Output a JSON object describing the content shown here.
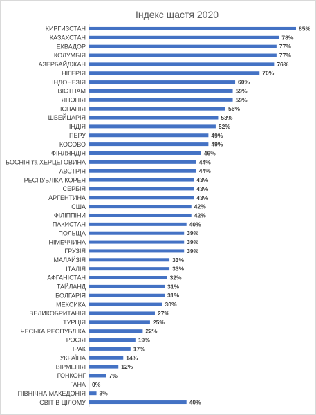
{
  "colors": {
    "bar": "#4472c4",
    "axis": "#d9d9d9",
    "label": "#404040",
    "title": "#595959"
  },
  "chart_data": {
    "type": "bar",
    "orientation": "horizontal",
    "title": "Індекс щастя 2020",
    "xlim": [
      0,
      85
    ],
    "grid": false,
    "categories": [
      "КИРГИЗСТАН",
      "КАЗАХСТАН",
      "ЕКВАДОР",
      "КОЛУМБІЯ",
      "АЗЕРБАЙДЖАН",
      "НІГЕРІЯ",
      "ІНДОНЕЗІЯ",
      "ВІЄТНАМ",
      "ЯПОНІЯ",
      "ІСПАНІЯ",
      "ШВЕЙЦАРІЯ",
      "ІНДІЯ",
      "ПЕРУ",
      "КОСОВО",
      "ФІНЛЯНДІЯ",
      "БОСНІЯ та ХЕРЦЕГОВИНА",
      "АВСТРІЯ",
      "РЕСПУБЛІКА КОРЕЯ",
      "СЕРБІЯ",
      "АРГЕНТИНА",
      "США",
      "ФІЛІППІНИ",
      "ПАКИСТАН",
      "ПОЛЬЩА",
      "НІМЕЧЧИНА",
      "ГРУЗІЯ",
      "МАЛАЙЗІЯ",
      "ІТАЛІЯ",
      "АФГАНІСТАН",
      "ТАЙЛАНД",
      "БОЛГАРІЯ",
      "МЕКСИКА",
      "ВЕЛИКОБРИТАНІЯ",
      "ТУРЦІЯ",
      "ЧЕСЬКА РЕСПУБЛІКА",
      "РОСІЯ",
      "ІРАК",
      "УКРАЇНА",
      "ВІРМЕНІЯ",
      "ГОНКОНГ",
      "ГАНА",
      "ПІВНІЧНА МАКЕДОНІЯ",
      "СВІТ В ЦІЛОМУ"
    ],
    "values": [
      85,
      78,
      77,
      77,
      76,
      70,
      60,
      59,
      59,
      56,
      53,
      52,
      49,
      49,
      46,
      44,
      44,
      43,
      43,
      43,
      42,
      42,
      40,
      39,
      39,
      39,
      33,
      33,
      32,
      31,
      31,
      30,
      27,
      25,
      22,
      19,
      17,
      14,
      12,
      7,
      0,
      3,
      40
    ],
    "value_labels": [
      "85%",
      "78%",
      "77%",
      "77%",
      "76%",
      "70%",
      "60%",
      "59%",
      "59%",
      "56%",
      "53%",
      "52%",
      "49%",
      "49%",
      "46%",
      "44%",
      "44%",
      "43%",
      "43%",
      "43%",
      "42%",
      "42%",
      "40%",
      "39%",
      "39%",
      "39%",
      "33%",
      "33%",
      "32%",
      "31%",
      "31%",
      "30%",
      "27%",
      "25%",
      "22%",
      "19%",
      "17%",
      "14%",
      "12%",
      "7%",
      "0%",
      "3%",
      "40%"
    ]
  }
}
